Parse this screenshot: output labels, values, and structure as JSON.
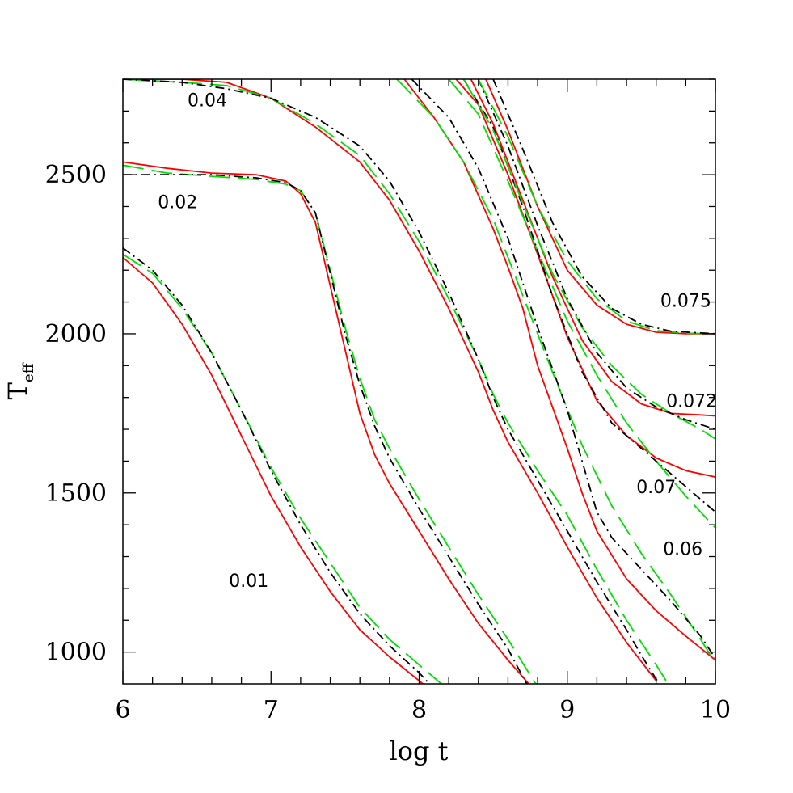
{
  "chart_data": {
    "type": "line",
    "xlabel": "log t",
    "ylabel_main": "T",
    "ylabel_sub": "eff",
    "xlim": [
      6,
      10
    ],
    "ylim": [
      900,
      2800
    ],
    "x_ticks": [
      6,
      7,
      8,
      9,
      10
    ],
    "x_tick_labels": [
      "6",
      "7",
      "8",
      "9",
      "10"
    ],
    "y_ticks": [
      1000,
      1500,
      2000,
      2500
    ],
    "y_tick_labels": [
      "1000",
      "1500",
      "2000",
      "2500"
    ],
    "styles": {
      "red": {
        "color": "#ff0000",
        "dash": ""
      },
      "green": {
        "color": "#00dd00",
        "dash": "26,10"
      },
      "black": {
        "color": "#000000",
        "dash": "11,5,2,5"
      }
    },
    "curve_labels": [
      {
        "text": "0.01",
        "x": 6.85,
        "y": 1225
      },
      {
        "text": "0.02",
        "x": 6.37,
        "y": 2415
      },
      {
        "text": "0.04",
        "x": 6.57,
        "y": 2735
      },
      {
        "text": "0.06",
        "x": 9.78,
        "y": 1325
      },
      {
        "text": "0.07",
        "x": 9.6,
        "y": 1520
      },
      {
        "text": "0.072",
        "x": 9.84,
        "y": 1790
      },
      {
        "text": "0.075",
        "x": 9.8,
        "y": 2105
      }
    ],
    "series": [
      {
        "mass": "0.01",
        "style": "red",
        "points": [
          [
            6,
            2240
          ],
          [
            6.2,
            2160
          ],
          [
            6.4,
            2030
          ],
          [
            6.6,
            1870
          ],
          [
            6.8,
            1680
          ],
          [
            7,
            1490
          ],
          [
            7.2,
            1330
          ],
          [
            7.4,
            1190
          ],
          [
            7.6,
            1070
          ],
          [
            7.8,
            985
          ],
          [
            8,
            910
          ],
          [
            8.05,
            890
          ]
        ]
      },
      {
        "mass": "0.01",
        "style": "green",
        "points": [
          [
            6,
            2250
          ],
          [
            6.2,
            2190
          ],
          [
            6.4,
            2080
          ],
          [
            6.6,
            1940
          ],
          [
            6.8,
            1760
          ],
          [
            7,
            1580
          ],
          [
            7.2,
            1420
          ],
          [
            7.4,
            1280
          ],
          [
            7.6,
            1140
          ],
          [
            7.8,
            1040
          ],
          [
            8,
            960
          ],
          [
            8.15,
            900
          ]
        ]
      },
      {
        "mass": "0.01",
        "style": "black",
        "points": [
          [
            6,
            2270
          ],
          [
            6.2,
            2200
          ],
          [
            6.4,
            2090
          ],
          [
            6.6,
            1940
          ],
          [
            6.8,
            1760
          ],
          [
            7,
            1570
          ],
          [
            7.2,
            1400
          ],
          [
            7.4,
            1250
          ],
          [
            7.6,
            1120
          ],
          [
            7.8,
            1020
          ],
          [
            8,
            935
          ],
          [
            8.08,
            895
          ]
        ]
      },
      {
        "mass": "0.02",
        "style": "red",
        "points": [
          [
            6,
            2540
          ],
          [
            6.3,
            2520
          ],
          [
            6.6,
            2505
          ],
          [
            6.9,
            2500
          ],
          [
            7.1,
            2480
          ],
          [
            7.2,
            2440
          ],
          [
            7.3,
            2350
          ],
          [
            7.4,
            2150
          ],
          [
            7.5,
            1950
          ],
          [
            7.6,
            1750
          ],
          [
            7.7,
            1620
          ],
          [
            7.8,
            1530
          ],
          [
            8,
            1380
          ],
          [
            8.2,
            1230
          ],
          [
            8.4,
            1090
          ],
          [
            8.6,
            975
          ],
          [
            8.75,
            895
          ]
        ]
      },
      {
        "mass": "0.02",
        "style": "green",
        "points": [
          [
            6,
            2530
          ],
          [
            6.3,
            2505
          ],
          [
            6.6,
            2495
          ],
          [
            6.9,
            2485
          ],
          [
            7.1,
            2470
          ],
          [
            7.2,
            2450
          ],
          [
            7.3,
            2380
          ],
          [
            7.4,
            2200
          ],
          [
            7.5,
            2020
          ],
          [
            7.6,
            1860
          ],
          [
            7.7,
            1730
          ],
          [
            7.8,
            1640
          ],
          [
            8,
            1480
          ],
          [
            8.2,
            1330
          ],
          [
            8.4,
            1180
          ],
          [
            8.6,
            1040
          ],
          [
            8.78,
            905
          ],
          [
            8.8,
            895
          ]
        ]
      },
      {
        "mass": "0.02",
        "style": "black",
        "points": [
          [
            6,
            2500
          ],
          [
            6.3,
            2500
          ],
          [
            6.6,
            2500
          ],
          [
            6.9,
            2490
          ],
          [
            7.1,
            2475
          ],
          [
            7.2,
            2450
          ],
          [
            7.3,
            2380
          ],
          [
            7.4,
            2190
          ],
          [
            7.5,
            2000
          ],
          [
            7.6,
            1840
          ],
          [
            7.7,
            1710
          ],
          [
            7.8,
            1610
          ],
          [
            8,
            1450
          ],
          [
            8.2,
            1300
          ],
          [
            8.4,
            1150
          ],
          [
            8.6,
            1010
          ],
          [
            8.72,
            905
          ],
          [
            8.74,
            895
          ]
        ]
      },
      {
        "mass": "0.04",
        "style": "red",
        "points": [
          [
            6,
            2800
          ],
          [
            6.4,
            2800
          ],
          [
            6.7,
            2790
          ],
          [
            7,
            2740
          ],
          [
            7.3,
            2650
          ],
          [
            7.6,
            2540
          ],
          [
            7.8,
            2420
          ],
          [
            8,
            2260
          ],
          [
            8.2,
            2080
          ],
          [
            8.4,
            1880
          ],
          [
            8.5,
            1760
          ],
          [
            8.6,
            1660
          ],
          [
            8.8,
            1500
          ],
          [
            9,
            1330
          ],
          [
            9.2,
            1170
          ],
          [
            9.4,
            1030
          ],
          [
            9.55,
            940
          ],
          [
            9.6,
            910
          ]
        ]
      },
      {
        "mass": "0.04",
        "style": "green",
        "points": [
          [
            6,
            2800
          ],
          [
            6.4,
            2790
          ],
          [
            6.7,
            2780
          ],
          [
            7,
            2740
          ],
          [
            7.3,
            2660
          ],
          [
            7.6,
            2560
          ],
          [
            7.8,
            2440
          ],
          [
            8,
            2290
          ],
          [
            8.2,
            2110
          ],
          [
            8.4,
            1920
          ],
          [
            8.5,
            1810
          ],
          [
            8.6,
            1720
          ],
          [
            8.8,
            1570
          ],
          [
            9,
            1430
          ],
          [
            9.2,
            1260
          ],
          [
            9.4,
            1100
          ],
          [
            9.6,
            960
          ],
          [
            9.68,
            900
          ]
        ]
      },
      {
        "mass": "0.04",
        "style": "black",
        "points": [
          [
            6,
            2800
          ],
          [
            6.4,
            2790
          ],
          [
            6.7,
            2770
          ],
          [
            7,
            2740
          ],
          [
            7.3,
            2680
          ],
          [
            7.6,
            2590
          ],
          [
            7.8,
            2480
          ],
          [
            8,
            2320
          ],
          [
            8.2,
            2130
          ],
          [
            8.4,
            1920
          ],
          [
            8.5,
            1800
          ],
          [
            8.6,
            1700
          ],
          [
            8.8,
            1540
          ],
          [
            9,
            1380
          ],
          [
            9.2,
            1220
          ],
          [
            9.4,
            1070
          ],
          [
            9.5,
            990
          ],
          [
            9.62,
            900
          ]
        ]
      },
      {
        "mass": "0.06",
        "style": "red",
        "points": [
          [
            7.9,
            2800
          ],
          [
            8.1,
            2680
          ],
          [
            8.3,
            2540
          ],
          [
            8.5,
            2330
          ],
          [
            8.6,
            2210
          ],
          [
            8.7,
            2080
          ],
          [
            8.8,
            1900
          ],
          [
            9,
            1640
          ],
          [
            9.1,
            1500
          ],
          [
            9.2,
            1380
          ],
          [
            9.4,
            1230
          ],
          [
            9.6,
            1130
          ],
          [
            9.8,
            1050
          ],
          [
            10,
            975
          ]
        ]
      },
      {
        "mass": "0.06",
        "style": "green",
        "points": [
          [
            7.85,
            2800
          ],
          [
            8.1,
            2680
          ],
          [
            8.3,
            2540
          ],
          [
            8.5,
            2360
          ],
          [
            8.7,
            2120
          ],
          [
            8.9,
            1880
          ],
          [
            9.1,
            1650
          ],
          [
            9.3,
            1460
          ],
          [
            9.5,
            1310
          ],
          [
            9.7,
            1180
          ],
          [
            9.9,
            1040
          ],
          [
            10,
            965
          ]
        ]
      },
      {
        "mass": "0.06",
        "style": "black",
        "points": [
          [
            7.95,
            2800
          ],
          [
            8.2,
            2680
          ],
          [
            8.4,
            2520
          ],
          [
            8.6,
            2300
          ],
          [
            8.8,
            2020
          ],
          [
            9,
            1760
          ],
          [
            9.1,
            1600
          ],
          [
            9.2,
            1440
          ],
          [
            9.3,
            1360
          ],
          [
            9.5,
            1260
          ],
          [
            9.7,
            1160
          ],
          [
            9.9,
            1050
          ],
          [
            10,
            980
          ]
        ]
      },
      {
        "mass": "0.07",
        "style": "red",
        "points": [
          [
            8.25,
            2800
          ],
          [
            8.4,
            2720
          ],
          [
            8.6,
            2500
          ],
          [
            8.8,
            2250
          ],
          [
            9,
            1990
          ],
          [
            9.2,
            1790
          ],
          [
            9.4,
            1680
          ],
          [
            9.6,
            1610
          ],
          [
            9.8,
            1570
          ],
          [
            10,
            1550
          ]
        ]
      },
      {
        "mass": "0.07",
        "style": "green",
        "points": [
          [
            8.2,
            2800
          ],
          [
            8.4,
            2690
          ],
          [
            8.6,
            2480
          ],
          [
            8.8,
            2260
          ],
          [
            9,
            2040
          ],
          [
            9.2,
            1870
          ],
          [
            9.4,
            1720
          ],
          [
            9.6,
            1600
          ],
          [
            9.8,
            1490
          ],
          [
            10,
            1390
          ]
        ]
      },
      {
        "mass": "0.07",
        "style": "black",
        "points": [
          [
            8.3,
            2800
          ],
          [
            8.5,
            2650
          ],
          [
            8.7,
            2400
          ],
          [
            8.9,
            2120
          ],
          [
            9.1,
            1880
          ],
          [
            9.3,
            1720
          ],
          [
            9.5,
            1640
          ],
          [
            9.7,
            1560
          ],
          [
            9.9,
            1480
          ],
          [
            10,
            1440
          ]
        ]
      },
      {
        "mass": "0.072",
        "style": "red",
        "points": [
          [
            8.35,
            2800
          ],
          [
            8.5,
            2660
          ],
          [
            8.7,
            2420
          ],
          [
            8.9,
            2180
          ],
          [
            9.1,
            1980
          ],
          [
            9.3,
            1850
          ],
          [
            9.5,
            1780
          ],
          [
            9.7,
            1750
          ],
          [
            9.9,
            1745
          ],
          [
            10,
            1742
          ]
        ]
      },
      {
        "mass": "0.072",
        "style": "green",
        "points": [
          [
            8.3,
            2800
          ],
          [
            8.5,
            2640
          ],
          [
            8.7,
            2410
          ],
          [
            8.9,
            2190
          ],
          [
            9.1,
            2020
          ],
          [
            9.3,
            1900
          ],
          [
            9.5,
            1810
          ],
          [
            9.7,
            1750
          ],
          [
            9.9,
            1700
          ],
          [
            10,
            1670
          ]
        ]
      },
      {
        "mass": "0.072",
        "style": "black",
        "points": [
          [
            8.4,
            2800
          ],
          [
            8.6,
            2590
          ],
          [
            8.8,
            2340
          ],
          [
            9,
            2110
          ],
          [
            9.2,
            1940
          ],
          [
            9.4,
            1830
          ],
          [
            9.6,
            1770
          ],
          [
            9.8,
            1730
          ],
          [
            10,
            1700
          ]
        ]
      },
      {
        "mass": "0.075",
        "style": "red",
        "points": [
          [
            8.45,
            2800
          ],
          [
            8.6,
            2640
          ],
          [
            8.8,
            2400
          ],
          [
            9,
            2200
          ],
          [
            9.2,
            2090
          ],
          [
            9.4,
            2030
          ],
          [
            9.6,
            2005
          ],
          [
            9.8,
            2000
          ],
          [
            10,
            2000
          ]
        ]
      },
      {
        "mass": "0.075",
        "style": "green",
        "points": [
          [
            8.4,
            2800
          ],
          [
            8.6,
            2620
          ],
          [
            8.8,
            2400
          ],
          [
            9,
            2230
          ],
          [
            9.2,
            2110
          ],
          [
            9.4,
            2040
          ],
          [
            9.6,
            2010
          ],
          [
            9.8,
            2002
          ],
          [
            10,
            2000
          ]
        ]
      },
      {
        "mass": "0.075",
        "style": "black",
        "points": [
          [
            8.5,
            2800
          ],
          [
            8.7,
            2580
          ],
          [
            8.9,
            2350
          ],
          [
            9.1,
            2180
          ],
          [
            9.3,
            2080
          ],
          [
            9.5,
            2030
          ],
          [
            9.7,
            2008
          ],
          [
            10,
            2000
          ]
        ]
      }
    ]
  }
}
